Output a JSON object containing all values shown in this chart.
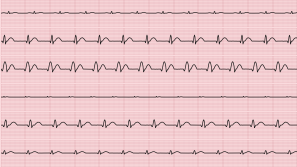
{
  "background_color": "#fadadd",
  "grid_major_color": "#e0a0a8",
  "grid_minor_color": "#ecc0c4",
  "ecg_color": "#111111",
  "num_rows": 6,
  "fig_width": 2.99,
  "fig_height": 1.68,
  "dpi": 100,
  "row_configs": [
    {
      "type": "small_normal",
      "amp": 0.28,
      "cycle": 52,
      "n": 600
    },
    {
      "type": "large_qrs",
      "amp": 0.9,
      "cycle": 48,
      "n": 600
    },
    {
      "type": "large_wide",
      "amp": 1.1,
      "cycle": 46,
      "n": 600
    },
    {
      "type": "flat_small",
      "amp": 0.12,
      "cycle": 44,
      "n": 600
    },
    {
      "type": "large_qrs",
      "amp": 0.8,
      "cycle": 50,
      "n": 600
    },
    {
      "type": "medium_qrs",
      "amp": 0.55,
      "cycle": 48,
      "n": 600
    }
  ]
}
